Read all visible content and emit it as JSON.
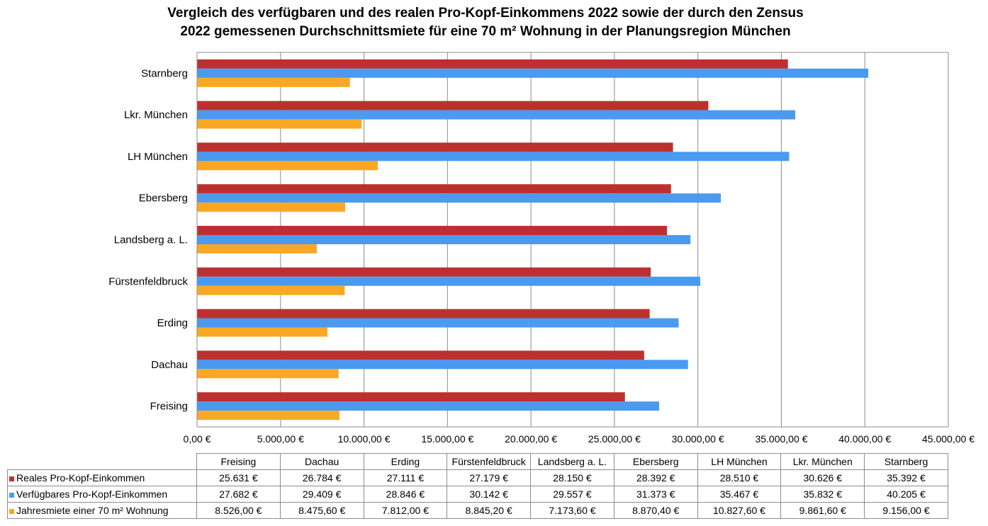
{
  "chart_data": {
    "type": "bar",
    "orientation": "horizontal",
    "title_lines": [
      "Vergleich des verfügbaren und des realen Pro-Kopf-Einkommens 2022 sowie der durch den Zensus",
      "2022 gemessenen Durchschnittsmiete für eine 70 m² Wohnung in der Planungsregion München"
    ],
    "categories": [
      "Freising",
      "Dachau",
      "Erding",
      "Fürstenfeldbruck",
      "Landsberg a. L.",
      "Ebersberg",
      "LH München",
      "Lkr.  München",
      "Starnberg"
    ],
    "series": [
      {
        "name": "Reales Pro-Kopf-Einkommen",
        "color": "#be3030",
        "values": [
          25631,
          26784,
          27111,
          27179,
          28150,
          28392,
          28510,
          30626,
          35392
        ],
        "labels": [
          "25.631 €",
          "26.784 €",
          "27.111 €",
          "27.179 €",
          "28.150 €",
          "28.392 €",
          "28.510 €",
          "30.626 €",
          "35.392 €"
        ]
      },
      {
        "name": "Verfügbares Pro-Kopf-Einkommen",
        "color": "#4a9af0",
        "values": [
          27682,
          29409,
          28846,
          30142,
          29557,
          31373,
          35467,
          35832,
          40205
        ],
        "labels": [
          "27.682 €",
          "29.409 €",
          "28.846 €",
          "30.142 €",
          "29.557 €",
          "31.373 €",
          "35.467 €",
          "35.832 €",
          "40.205 €"
        ]
      },
      {
        "name": "Jahresmiete einer 70 m² Wohnung",
        "color": "#f9a825",
        "values": [
          8526.0,
          8475.6,
          7812.0,
          8845.2,
          7173.6,
          8870.4,
          10827.6,
          9861.6,
          9156.0
        ],
        "labels": [
          "8.526,00 €",
          "8.475,60 €",
          "7.812,00 €",
          "8.845,20 €",
          "7.173,60 €",
          "8.870,40 €",
          "10.827,60 €",
          "9.861,60 €",
          "9.156,00 €"
        ]
      }
    ],
    "xlim": [
      0,
      45000
    ],
    "xticks": [
      0,
      5000,
      10000,
      15000,
      20000,
      25000,
      30000,
      35000,
      40000,
      45000
    ],
    "xtick_labels": [
      "0,00 €",
      "5.000,00 €",
      "10.000,00 €",
      "15.000,00 €",
      "20.000,00 €",
      "25.000,00 €",
      "30.000,00 €",
      "35.000,00 €",
      "40.000,00 €",
      "45.000,00 €"
    ],
    "grid": true,
    "legend": "data-table-below"
  }
}
